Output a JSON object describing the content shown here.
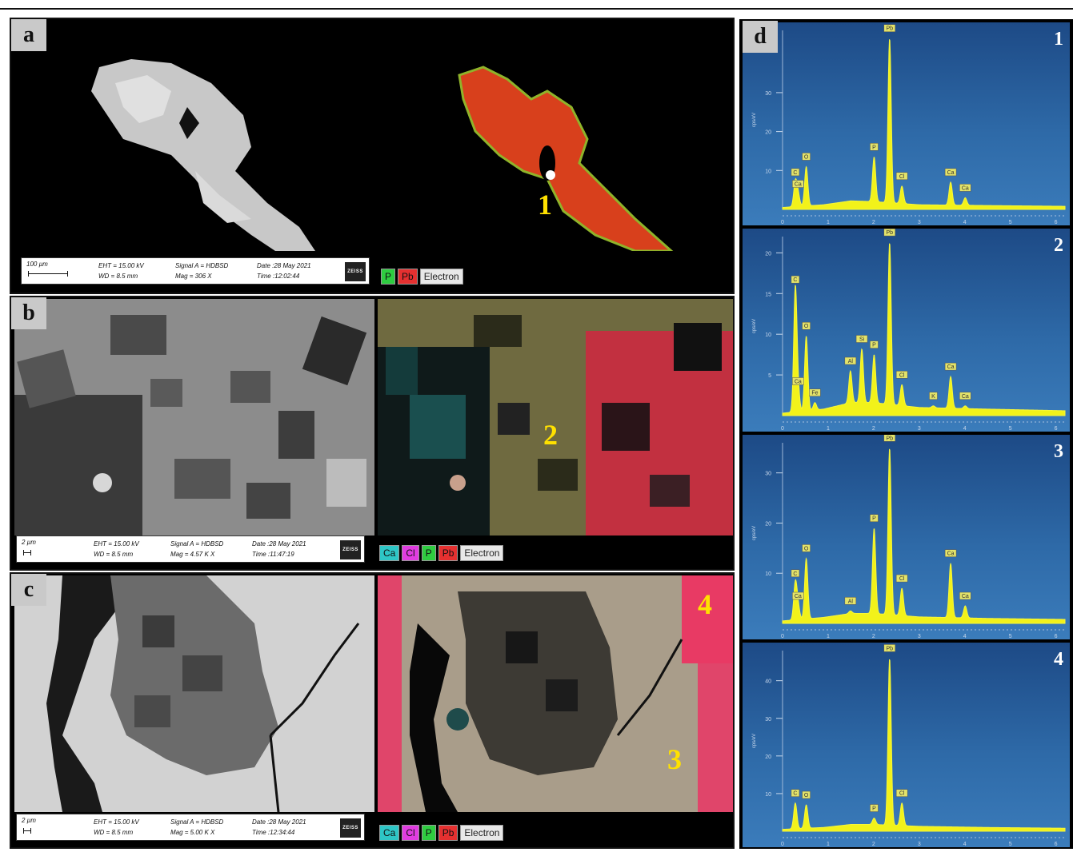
{
  "panels": {
    "a": {
      "label": "a",
      "info": {
        "scale": "100 µm",
        "eht": "EHT = 15.00 kV",
        "wd": "WD =  8.5 mm",
        "signal": "Signal A = HDBSD",
        "mag": "Mag =   306 X",
        "date": "Date :28 May 2021",
        "time": "Time :12:02:44",
        "logo": "ZEISS"
      },
      "legend": [
        "P",
        "Pb",
        "Electron"
      ],
      "points": [
        "1"
      ]
    },
    "b": {
      "label": "b",
      "info": {
        "scale": "2 µm",
        "eht": "EHT = 15.00 kV",
        "wd": "WD =  8.5 mm",
        "signal": "Signal A = HDBSD",
        "mag": "Mag =   4.57 K X",
        "date": "Date :28 May 2021",
        "time": "Time :11:47:19",
        "logo": "ZEISS"
      },
      "legend": [
        "Ca",
        "Cl",
        "P",
        "Pb",
        "Electron"
      ],
      "points": [
        "2"
      ]
    },
    "c": {
      "label": "c",
      "info": {
        "scale": "2 µm",
        "eht": "EHT = 15.00 kV",
        "wd": "WD =  8.5 mm",
        "signal": "Signal A = HDBSD",
        "mag": "Mag =    5.00 K X",
        "date": "Date :28 May 2021",
        "time": "Time :12:34:44",
        "logo": "ZEISS"
      },
      "legend": [
        "Ca",
        "Cl",
        "P",
        "Pb",
        "Electron"
      ],
      "points": [
        "3",
        "4"
      ]
    },
    "d": {
      "label": "d"
    }
  },
  "legend_colors": {
    "Ca": "#2ec6c6",
    "Cl": "#e03ce0",
    "P": "#2ecc40",
    "Pb": "#e53030",
    "Electron": "#e8e8e8"
  },
  "chart_data": [
    {
      "type": "line",
      "index": "1",
      "ylabel": "cps/eV",
      "x_ticks": [
        "0",
        "1",
        "2",
        "3",
        "4",
        "5",
        "6"
      ],
      "y_ticks": [
        "10",
        "20",
        "30"
      ],
      "ylim": [
        0,
        46
      ],
      "xlim": [
        0,
        6.2
      ],
      "baseline": [
        [
          0,
          0.5
        ],
        [
          0.9,
          1.2
        ],
        [
          1.5,
          2.2
        ],
        [
          2.0,
          2.0
        ],
        [
          3.0,
          1.2
        ],
        [
          4.5,
          1.0
        ],
        [
          6.2,
          0.8
        ]
      ],
      "peaks": [
        {
          "label": "C",
          "x": 0.28,
          "y": 7
        },
        {
          "label": "Ca",
          "x": 0.34,
          "y": 4
        },
        {
          "label": "O",
          "x": 0.52,
          "y": 11
        },
        {
          "label": "P",
          "x": 2.01,
          "y": 13.5
        },
        {
          "label": "Pb",
          "x": 2.35,
          "y": 44
        },
        {
          "label": "Cl",
          "x": 2.62,
          "y": 6
        },
        {
          "label": "Ca",
          "x": 3.69,
          "y": 7
        },
        {
          "label": "Ca",
          "x": 4.01,
          "y": 3
        }
      ]
    },
    {
      "type": "line",
      "index": "2",
      "ylabel": "cps/eV",
      "x_ticks": [
        "0",
        "1",
        "2",
        "3",
        "4",
        "5",
        "6"
      ],
      "y_ticks": [
        "5",
        "10",
        "15",
        "20"
      ],
      "ylim": [
        0,
        22
      ],
      "xlim": [
        0,
        6.2
      ],
      "baseline": [
        [
          0,
          0.3
        ],
        [
          0.9,
          0.8
        ],
        [
          1.5,
          1.6
        ],
        [
          2.0,
          1.6
        ],
        [
          3.0,
          1.0
        ],
        [
          4.5,
          0.8
        ],
        [
          6.2,
          0.6
        ]
      ],
      "peaks": [
        {
          "label": "C",
          "x": 0.28,
          "y": 15.5
        },
        {
          "label": "Ca",
          "x": 0.34,
          "y": 3
        },
        {
          "label": "O",
          "x": 0.52,
          "y": 9.8
        },
        {
          "label": "Fe",
          "x": 0.71,
          "y": 1.6
        },
        {
          "label": "Al",
          "x": 1.49,
          "y": 5.5
        },
        {
          "label": "Si",
          "x": 1.74,
          "y": 8.2
        },
        {
          "label": "P",
          "x": 2.01,
          "y": 7.5
        },
        {
          "label": "Pb",
          "x": 2.35,
          "y": 21.3
        },
        {
          "label": "Cl",
          "x": 2.62,
          "y": 3.8
        },
        {
          "label": "K",
          "x": 3.31,
          "y": 1.2
        },
        {
          "label": "Ca",
          "x": 3.69,
          "y": 4.8
        },
        {
          "label": "Ca",
          "x": 4.01,
          "y": 1.2
        }
      ]
    },
    {
      "type": "line",
      "index": "3",
      "ylabel": "cps/eV",
      "x_ticks": [
        "0",
        "1",
        "2",
        "3",
        "4",
        "5",
        "6"
      ],
      "y_ticks": [
        "10",
        "20",
        "30"
      ],
      "ylim": [
        0,
        36
      ],
      "xlim": [
        0,
        6.2
      ],
      "baseline": [
        [
          0,
          0.5
        ],
        [
          0.9,
          1.2
        ],
        [
          1.5,
          2.0
        ],
        [
          2.0,
          2.0
        ],
        [
          3.0,
          1.3
        ],
        [
          4.5,
          1.0
        ],
        [
          6.2,
          0.8
        ]
      ],
      "peaks": [
        {
          "label": "C",
          "x": 0.28,
          "y": 8
        },
        {
          "label": "Ca",
          "x": 0.34,
          "y": 3.5
        },
        {
          "label": "O",
          "x": 0.52,
          "y": 13
        },
        {
          "label": "Al",
          "x": 1.49,
          "y": 2.5
        },
        {
          "label": "P",
          "x": 2.01,
          "y": 19
        },
        {
          "label": "Pb",
          "x": 2.35,
          "y": 35
        },
        {
          "label": "Cl",
          "x": 2.62,
          "y": 7
        },
        {
          "label": "Ca",
          "x": 3.69,
          "y": 12
        },
        {
          "label": "Ca",
          "x": 4.01,
          "y": 3.5
        }
      ]
    },
    {
      "type": "line",
      "index": "4",
      "ylabel": "cps/eV",
      "x_ticks": [
        "0",
        "1",
        "2",
        "3",
        "4",
        "5",
        "6"
      ],
      "y_ticks": [
        "10",
        "20",
        "30",
        "40"
      ],
      "ylim": [
        0,
        48
      ],
      "xlim": [
        0,
        6.2
      ],
      "baseline": [
        [
          0,
          0.5
        ],
        [
          0.9,
          1.0
        ],
        [
          1.5,
          1.8
        ],
        [
          2.0,
          1.8
        ],
        [
          3.0,
          1.3
        ],
        [
          4.5,
          1.0
        ],
        [
          6.2,
          0.8
        ]
      ],
      "peaks": [
        {
          "label": "C",
          "x": 0.28,
          "y": 7.5
        },
        {
          "label": "O",
          "x": 0.52,
          "y": 7
        },
        {
          "label": "P",
          "x": 2.01,
          "y": 3.5
        },
        {
          "label": "Pb",
          "x": 2.35,
          "y": 46
        },
        {
          "label": "Cl",
          "x": 2.62,
          "y": 7.5
        }
      ]
    }
  ]
}
